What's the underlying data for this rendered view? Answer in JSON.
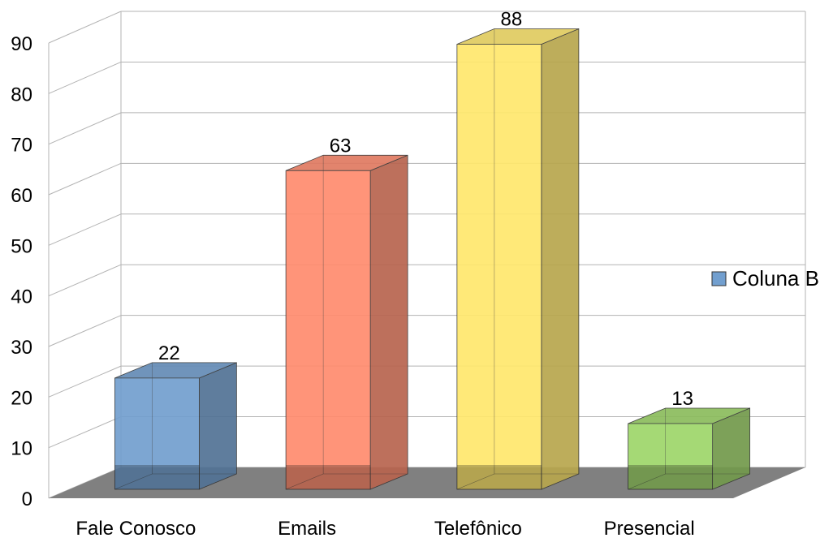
{
  "chart_data": {
    "type": "bar",
    "style": "3d-column",
    "categories": [
      "Fale Conosco",
      "Emails",
      "Telefônico",
      "Presencial"
    ],
    "series": [
      {
        "name": "Coluna B",
        "values": [
          22,
          63,
          88,
          13
        ]
      }
    ],
    "bar_colors": [
      "#729fcf",
      "#ff8b6e",
      "#ffe86d",
      "#9ed66a"
    ],
    "legend_color": "#729fcf",
    "ylim": [
      0,
      90
    ],
    "yticks": [
      0,
      10,
      20,
      30,
      40,
      50,
      60,
      70,
      80,
      90
    ],
    "grid": true,
    "legend_position": "right",
    "data_labels": true,
    "floor_color": "#808080",
    "title": "",
    "xlabel": "",
    "ylabel": ""
  }
}
